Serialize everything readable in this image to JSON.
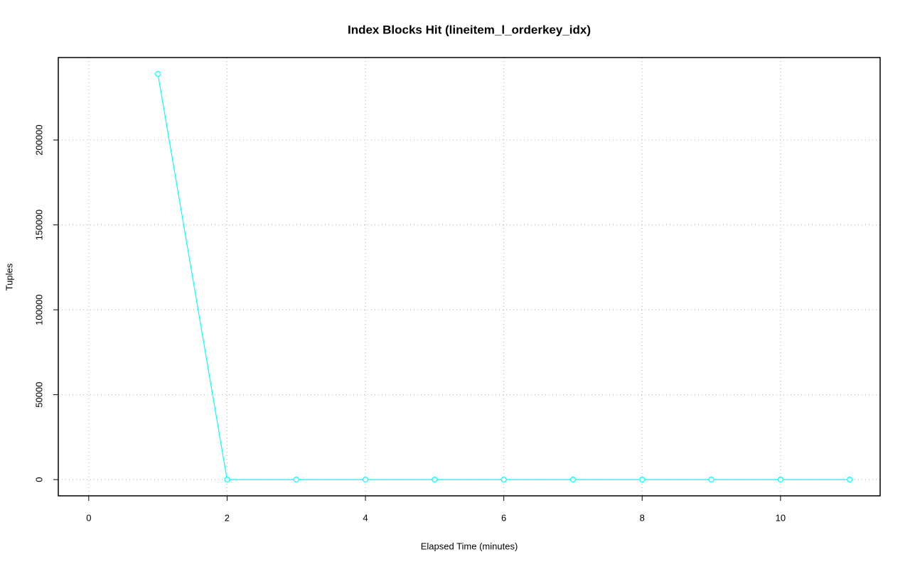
{
  "chart_data": {
    "type": "line",
    "title": "Index Blocks Hit (lineitem_l_orderkey_idx)",
    "x_label": "Elapsed Time (minutes)",
    "y_label": "Tuples",
    "x": [
      1,
      2,
      3,
      4,
      5,
      6,
      7,
      8,
      9,
      10,
      11
    ],
    "values": [
      238900,
      0,
      0,
      0,
      0,
      0,
      0,
      0,
      0,
      0,
      0
    ],
    "color": "#00ffff",
    "xlim": [
      -0.44,
      11.44
    ],
    "xticks": [
      0,
      2,
      4,
      6,
      8,
      10
    ],
    "ylim": [
      -9560,
      248560
    ],
    "yticks": [
      0,
      50000,
      100000,
      150000,
      200000
    ],
    "grid": true
  }
}
